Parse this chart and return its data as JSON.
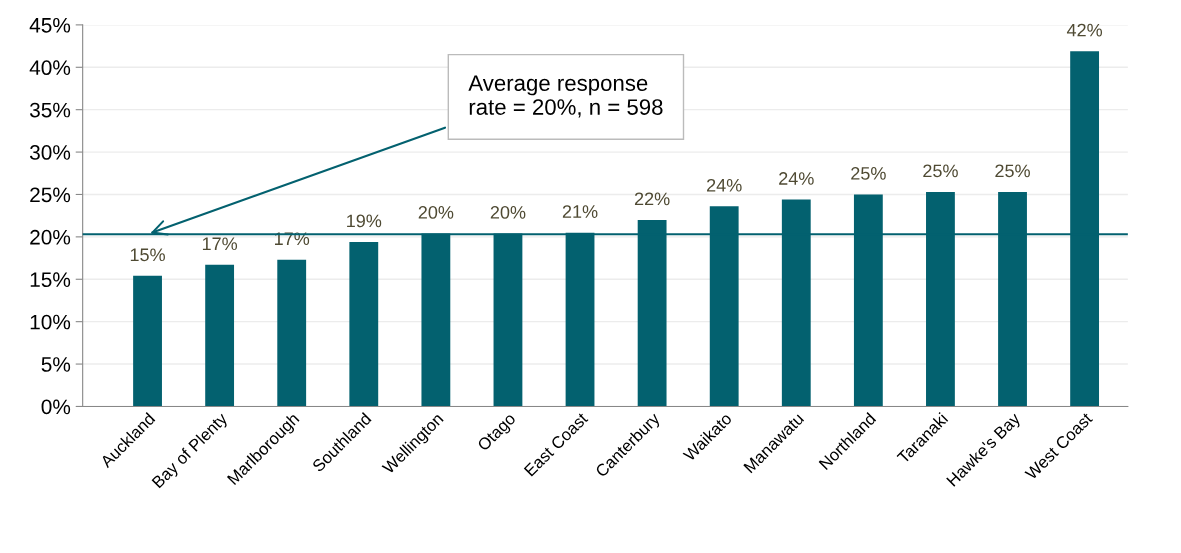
{
  "chart_data": {
    "type": "bar",
    "categories": [
      "Auckland",
      "Bay of Plenty",
      "Marlborough",
      "Southland",
      "Wellington",
      "Otago",
      "East Coast",
      "Canterbury",
      "Waikato",
      "Manawatu",
      "Northland",
      "Taranaki",
      "Hawke's Bay",
      "West Coast"
    ],
    "values": [
      15.4,
      16.7,
      17.3,
      19.4,
      20.4,
      20.4,
      20.5,
      22,
      23.6,
      24.4,
      25,
      25.3,
      25.3,
      41.9
    ],
    "value_labels": [
      "15%",
      "17%",
      "17%",
      "19%",
      "20%",
      "20%",
      "21%",
      "22%",
      "24%",
      "24%",
      "25%",
      "25%",
      "25%",
      "42%"
    ],
    "color": "#03616f",
    "ylim": [
      0,
      45
    ],
    "yticks": [
      {
        "value": 0,
        "label": "0%"
      },
      {
        "value": 5,
        "label": "5%"
      },
      {
        "value": 10,
        "label": "10%"
      },
      {
        "value": 15,
        "label": "15%"
      },
      {
        "value": 20,
        "label": "20%"
      },
      {
        "value": 25,
        "label": "25%"
      },
      {
        "value": 30,
        "label": "30%"
      },
      {
        "value": 35,
        "label": "35%"
      },
      {
        "value": 40,
        "label": "40%"
      },
      {
        "value": 45,
        "label": "45%"
      }
    ],
    "grid": "y",
    "ref_lines": [
      {
        "axis": "y",
        "value": 20.3,
        "color": "#03616f"
      }
    ],
    "annotations": [
      {
        "text": "Average response\nrate = 20%, n = 598",
        "x": "Auckland",
        "y": 20.3
      }
    ]
  }
}
